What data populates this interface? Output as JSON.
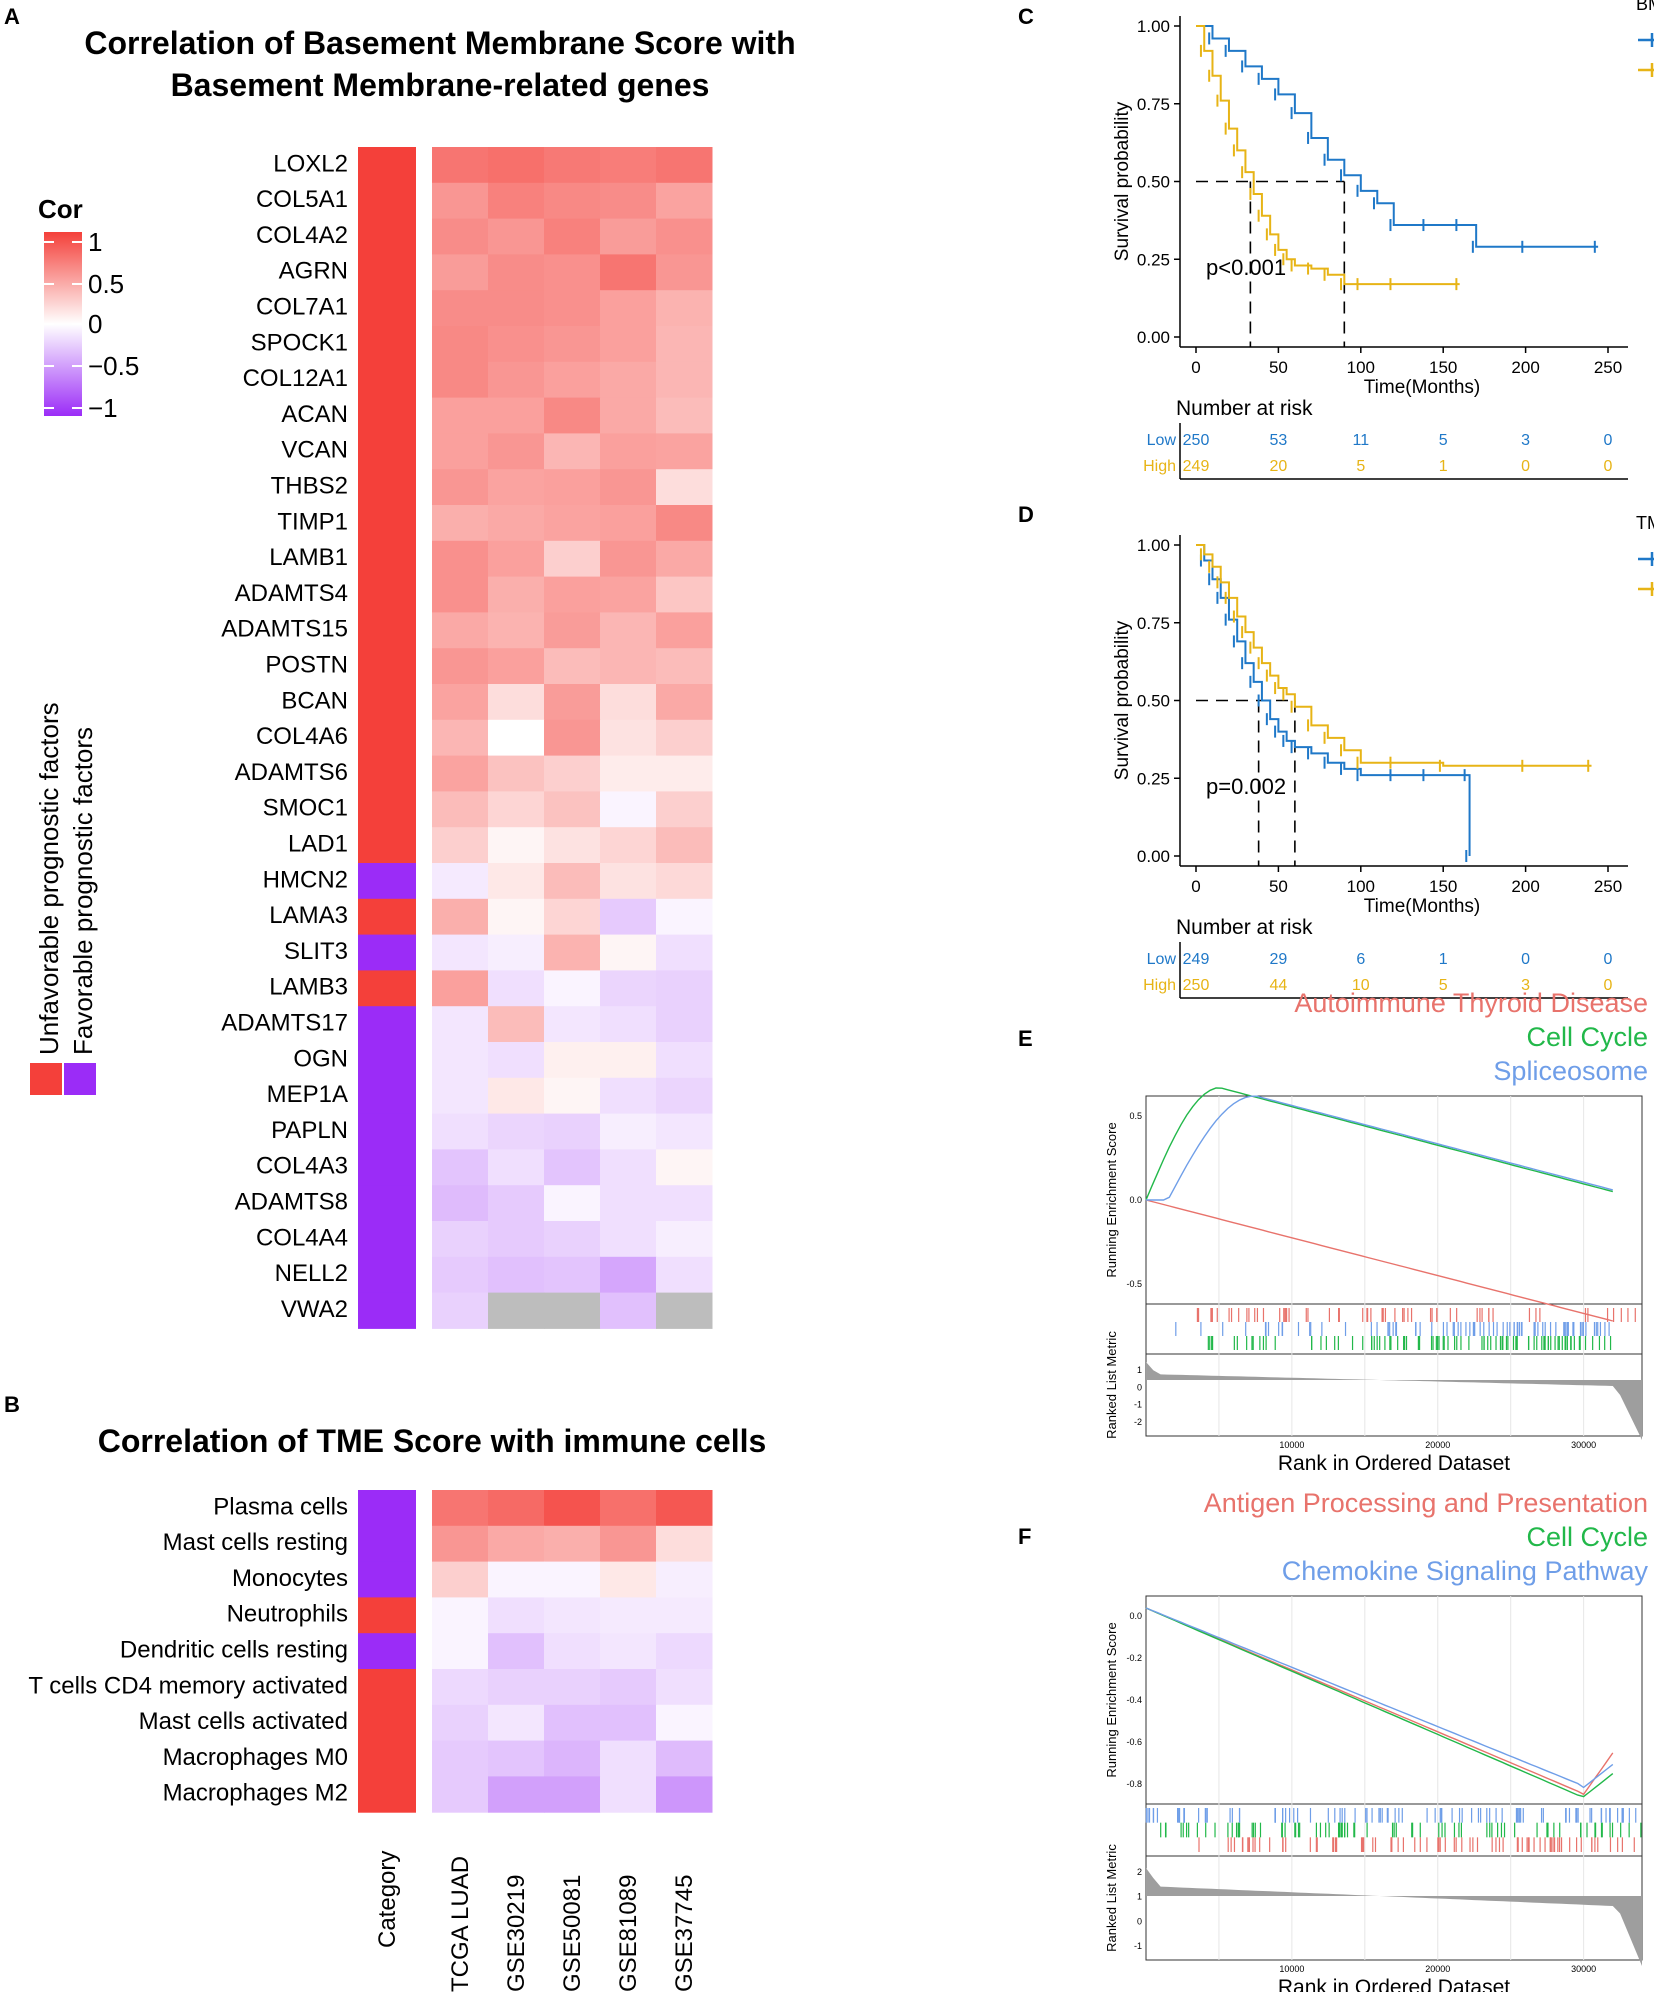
{
  "panel_labels": {
    "A": "A",
    "B": "B",
    "C": "C",
    "D": "D",
    "E": "E",
    "F": "F"
  },
  "chart_data": [
    {
      "id": "A",
      "type": "heatmap",
      "title_line1": "Correlation of Basement Membrane Score with",
      "title_line2": "Basement Membrane-related genes",
      "columns": [
        "TCGA LUAD",
        "GSE30219",
        "GSE50081",
        "GSE81089",
        "GSE37745"
      ],
      "category_label": "Category",
      "rows": [
        {
          "name": "LOXL2",
          "cat": "U",
          "values": [
            0.72,
            0.75,
            0.7,
            0.68,
            0.72
          ]
        },
        {
          "name": "COL5A1",
          "cat": "U",
          "values": [
            0.55,
            0.66,
            0.62,
            0.6,
            0.48
          ]
        },
        {
          "name": "COL4A2",
          "cat": "U",
          "values": [
            0.6,
            0.55,
            0.66,
            0.52,
            0.58
          ]
        },
        {
          "name": "AGRN",
          "cat": "U",
          "values": [
            0.52,
            0.6,
            0.58,
            0.72,
            0.55
          ]
        },
        {
          "name": "COL7A1",
          "cat": "U",
          "values": [
            0.6,
            0.6,
            0.58,
            0.5,
            0.4
          ]
        },
        {
          "name": "SPOCK1",
          "cat": "U",
          "values": [
            0.62,
            0.58,
            0.55,
            0.5,
            0.38
          ]
        },
        {
          "name": "COL12A1",
          "cat": "U",
          "values": [
            0.62,
            0.55,
            0.5,
            0.45,
            0.38
          ]
        },
        {
          "name": "ACAN",
          "cat": "U",
          "values": [
            0.5,
            0.5,
            0.62,
            0.45,
            0.35
          ]
        },
        {
          "name": "VCAN",
          "cat": "U",
          "values": [
            0.5,
            0.55,
            0.38,
            0.5,
            0.48
          ]
        },
        {
          "name": "THBS2",
          "cat": "U",
          "values": [
            0.55,
            0.48,
            0.5,
            0.55,
            0.18
          ]
        },
        {
          "name": "TIMP1",
          "cat": "U",
          "values": [
            0.42,
            0.45,
            0.48,
            0.5,
            0.62
          ]
        },
        {
          "name": "LAMB1",
          "cat": "U",
          "values": [
            0.58,
            0.5,
            0.25,
            0.55,
            0.45
          ]
        },
        {
          "name": "ADAMTS4",
          "cat": "U",
          "values": [
            0.58,
            0.42,
            0.5,
            0.48,
            0.3
          ]
        },
        {
          "name": "ADAMTS15",
          "cat": "U",
          "values": [
            0.45,
            0.4,
            0.52,
            0.38,
            0.5
          ]
        },
        {
          "name": "POSTN",
          "cat": "U",
          "values": [
            0.55,
            0.5,
            0.35,
            0.38,
            0.35
          ]
        },
        {
          "name": "BCAN",
          "cat": "U",
          "values": [
            0.48,
            0.18,
            0.52,
            0.18,
            0.45
          ]
        },
        {
          "name": "COL4A6",
          "cat": "U",
          "values": [
            0.38,
            0.0,
            0.55,
            0.15,
            0.25
          ]
        },
        {
          "name": "ADAMTS6",
          "cat": "U",
          "values": [
            0.48,
            0.32,
            0.25,
            0.1,
            0.1
          ]
        },
        {
          "name": "SMOC1",
          "cat": "U",
          "values": [
            0.35,
            0.22,
            0.32,
            -0.05,
            0.25
          ]
        },
        {
          "name": "LAD1",
          "cat": "U",
          "values": [
            0.25,
            0.05,
            0.15,
            0.22,
            0.35
          ]
        },
        {
          "name": "HMCN2",
          "cat": "F",
          "values": [
            -0.1,
            0.12,
            0.35,
            0.15,
            0.2
          ]
        },
        {
          "name": "LAMA3",
          "cat": "U",
          "values": [
            0.42,
            0.05,
            0.22,
            -0.25,
            -0.05
          ]
        },
        {
          "name": "SLIT3",
          "cat": "F",
          "values": [
            -0.12,
            -0.08,
            0.4,
            0.05,
            -0.15
          ]
        },
        {
          "name": "LAMB3",
          "cat": "U",
          "values": [
            0.5,
            -0.15,
            -0.05,
            -0.2,
            -0.22
          ]
        },
        {
          "name": "ADAMTS17",
          "cat": "F",
          "values": [
            -0.12,
            0.35,
            -0.12,
            -0.15,
            -0.22
          ]
        },
        {
          "name": "OGN",
          "cat": "F",
          "values": [
            -0.12,
            -0.15,
            0.08,
            0.08,
            -0.15
          ]
        },
        {
          "name": "MEP1A",
          "cat": "F",
          "values": [
            -0.12,
            0.12,
            0.05,
            -0.15,
            -0.2
          ]
        },
        {
          "name": "PAPLN",
          "cat": "F",
          "values": [
            -0.15,
            -0.2,
            -0.22,
            -0.08,
            -0.12
          ]
        },
        {
          "name": "COL4A3",
          "cat": "F",
          "values": [
            -0.28,
            -0.15,
            -0.28,
            -0.15,
            0.05
          ]
        },
        {
          "name": "ADAMTS8",
          "cat": "F",
          "values": [
            -0.32,
            -0.25,
            -0.05,
            -0.15,
            -0.15
          ]
        },
        {
          "name": "COL4A4",
          "cat": "F",
          "values": [
            -0.22,
            -0.25,
            -0.22,
            -0.15,
            -0.08
          ]
        },
        {
          "name": "NELL2",
          "cat": "F",
          "values": [
            -0.25,
            -0.3,
            -0.28,
            -0.42,
            -0.15
          ]
        },
        {
          "name": "VWA2",
          "cat": "F",
          "values": [
            -0.22,
            null,
            null,
            -0.3,
            null
          ]
        }
      ]
    },
    {
      "id": "B",
      "type": "heatmap",
      "title": "Correlation of TME Score with immune cells",
      "rows": [
        {
          "name": "Plasma cells",
          "cat": "F",
          "values": [
            0.72,
            0.78,
            0.9,
            0.75,
            0.88
          ]
        },
        {
          "name": "Mast cells resting",
          "cat": "F",
          "values": [
            0.55,
            0.45,
            0.42,
            0.55,
            0.18
          ]
        },
        {
          "name": "Monocytes",
          "cat": "F",
          "values": [
            0.25,
            -0.05,
            -0.05,
            0.12,
            -0.08
          ]
        },
        {
          "name": "Neutrophils",
          "cat": "U",
          "values": [
            -0.05,
            -0.15,
            -0.12,
            -0.1,
            -0.1
          ]
        },
        {
          "name": "Dendritic cells resting",
          "cat": "F",
          "values": [
            -0.05,
            -0.3,
            -0.15,
            -0.12,
            -0.18
          ]
        },
        {
          "name": "T cells CD4 memory activated",
          "cat": "U",
          "values": [
            -0.18,
            -0.22,
            -0.22,
            -0.25,
            -0.15
          ]
        },
        {
          "name": "Mast cells activated",
          "cat": "U",
          "values": [
            -0.22,
            -0.12,
            -0.3,
            -0.3,
            -0.05
          ]
        },
        {
          "name": "Macrophages M0",
          "cat": "U",
          "values": [
            -0.25,
            -0.28,
            -0.35,
            -0.15,
            -0.32
          ]
        },
        {
          "name": "Macrophages M2",
          "cat": "U",
          "values": [
            -0.25,
            -0.45,
            -0.45,
            -0.15,
            -0.5
          ]
        }
      ]
    },
    {
      "id": "legend",
      "type": "colorbar",
      "title": "Cor",
      "ticks": [
        "1",
        "0.5",
        "0",
        "−0.5",
        "−1"
      ],
      "category_labels": [
        "Unfavorable prognostic factors",
        "Favorable prognostic factors"
      ]
    },
    {
      "id": "C",
      "type": "line",
      "legend_title": "BM_score",
      "series": [
        {
          "name": "Low",
          "color": "#1f78c8",
          "median": 90,
          "x": [
            0,
            10,
            20,
            30,
            40,
            50,
            60,
            70,
            80,
            90,
            100,
            110,
            120,
            140,
            160,
            170,
            200,
            244
          ],
          "y": [
            1.0,
            0.96,
            0.92,
            0.87,
            0.83,
            0.78,
            0.72,
            0.64,
            0.57,
            0.52,
            0.47,
            0.43,
            0.36,
            0.36,
            0.36,
            0.29,
            0.29,
            0.29
          ]
        },
        {
          "name": "High",
          "color": "#e7b416",
          "median": 33,
          "x": [
            0,
            5,
            10,
            15,
            20,
            25,
            30,
            35,
            40,
            45,
            50,
            55,
            60,
            70,
            80,
            90,
            100,
            120,
            160
          ],
          "y": [
            1.0,
            0.92,
            0.84,
            0.76,
            0.67,
            0.6,
            0.53,
            0.46,
            0.39,
            0.33,
            0.28,
            0.25,
            0.23,
            0.22,
            0.2,
            0.17,
            0.17,
            0.17,
            0.17
          ]
        }
      ],
      "p_label": "p<0.001",
      "ylabel": "Survival probability",
      "xlabel": "Time(Months)",
      "x_ticks": [
        "0",
        "50",
        "100",
        "150",
        "200",
        "250"
      ],
      "y_ticks": [
        "0.00",
        "0.25",
        "0.50",
        "0.75",
        "1.00"
      ],
      "xlim": [
        0,
        250
      ],
      "ylim": [
        0,
        1
      ],
      "risk_title": "Number at risk",
      "risk_low": [
        "250",
        "53",
        "11",
        "5",
        "3",
        "0"
      ],
      "risk_high": [
        "249",
        "20",
        "5",
        "1",
        "0",
        "0"
      ]
    },
    {
      "id": "D",
      "type": "line",
      "legend_title": "TME_score",
      "series": [
        {
          "name": "Low",
          "color": "#1f78c8",
          "median": 38,
          "x": [
            0,
            5,
            10,
            15,
            20,
            25,
            30,
            35,
            40,
            45,
            50,
            55,
            60,
            70,
            80,
            90,
            100,
            120,
            140,
            165,
            166
          ],
          "y": [
            1.0,
            0.95,
            0.89,
            0.83,
            0.76,
            0.69,
            0.62,
            0.56,
            0.5,
            0.44,
            0.4,
            0.37,
            0.35,
            0.33,
            0.3,
            0.28,
            0.26,
            0.26,
            0.26,
            0.26,
            0.0
          ]
        },
        {
          "name": "High",
          "color": "#e7b416",
          "median": 60,
          "x": [
            0,
            5,
            10,
            15,
            20,
            25,
            30,
            35,
            40,
            45,
            50,
            55,
            60,
            70,
            80,
            90,
            100,
            120,
            150,
            200,
            240
          ],
          "y": [
            1.0,
            0.97,
            0.93,
            0.88,
            0.83,
            0.77,
            0.72,
            0.67,
            0.62,
            0.58,
            0.54,
            0.52,
            0.48,
            0.42,
            0.38,
            0.34,
            0.3,
            0.3,
            0.29,
            0.29,
            0.29
          ]
        }
      ],
      "p_label": "p=0.002",
      "ylabel": "Survival probability",
      "xlabel": "Time(Months)",
      "x_ticks": [
        "0",
        "50",
        "100",
        "150",
        "200",
        "250"
      ],
      "y_ticks": [
        "0.00",
        "0.25",
        "0.50",
        "0.75",
        "1.00"
      ],
      "xlim": [
        0,
        250
      ],
      "ylim": [
        0,
        1
      ],
      "risk_title": "Number at risk",
      "risk_low": [
        "249",
        "29",
        "6",
        "1",
        "0",
        "0"
      ],
      "risk_high": [
        "250",
        "44",
        "10",
        "5",
        "3",
        "0"
      ]
    },
    {
      "id": "E",
      "type": "line",
      "series_names": [
        "Autoimmune Thyroid Disease",
        "Cell Cycle",
        "Spliceosome"
      ],
      "series_colors": [
        "#e8736c",
        "#22b84a",
        "#6f9ee8"
      ],
      "ylabel_top": "Running Enrichment Score",
      "ylabel_bottom": "Ranked List Metric",
      "xlabel": "Rank in Ordered Dataset",
      "x_ticks": [
        "10000",
        "20000",
        "30000"
      ],
      "y_ticks_top": [
        "0.5",
        "0.0",
        "-0.5"
      ],
      "y_ticks_bottom": [
        "1",
        "0",
        "-1",
        "-2"
      ]
    },
    {
      "id": "F",
      "type": "line",
      "series_names": [
        "Antigen Processing and Presentation",
        "Cell Cycle",
        "Chemokine Signaling Pathway"
      ],
      "series_colors": [
        "#e8736c",
        "#22b84a",
        "#6f9ee8"
      ],
      "ylabel_top": "Running Enrichment Score",
      "ylabel_bottom": "Ranked List Metric",
      "xlabel": "Rank in Ordered Dataset",
      "x_ticks": [
        "10000",
        "20000",
        "30000"
      ],
      "y_ticks_top": [
        "0.0",
        "-0.2",
        "-0.4",
        "-0.6",
        "-0.8"
      ],
      "y_ticks_bottom": [
        "2",
        "1",
        "0",
        "-1"
      ]
    }
  ]
}
